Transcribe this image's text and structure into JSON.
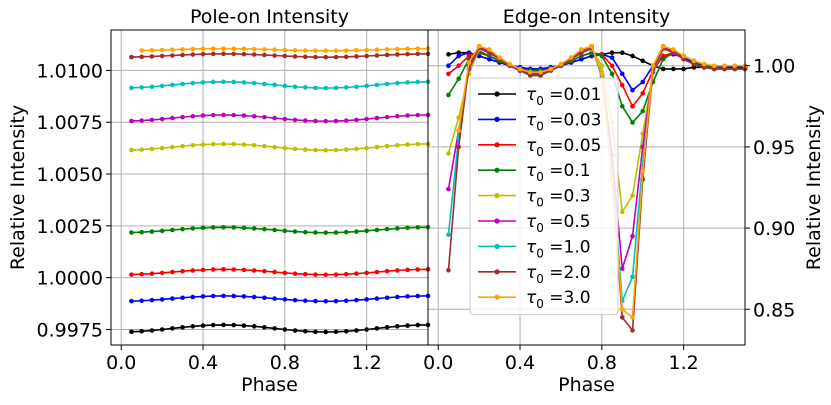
{
  "chart_data": [
    {
      "type": "line",
      "title": "Pole-on Intensity",
      "xlabel": "Phase",
      "ylabel": "Relative Intensity",
      "xlim": [
        -0.05,
        1.5
      ],
      "ylim": [
        0.99675,
        1.01195
      ],
      "xticks": [
        0.0,
        0.4,
        0.8,
        1.2
      ],
      "xtick_labels": [
        "0.0",
        "0.4",
        "0.8",
        "1.2"
      ],
      "yticks": [
        0.9975,
        1.0,
        1.0025,
        1.005,
        1.0075,
        1.01
      ],
      "ytick_labels": [
        "0.9975",
        "1.0000",
        "1.0025",
        "1.0050",
        "1.0075",
        "1.0100"
      ],
      "grid": true,
      "x": [
        0.05,
        0.1,
        0.15,
        0.2,
        0.25,
        0.3,
        0.35,
        0.4,
        0.45,
        0.5,
        0.55,
        0.6,
        0.65,
        0.7,
        0.75,
        0.8,
        0.85,
        0.9,
        0.95,
        1.0,
        1.05,
        1.1,
        1.15,
        1.2,
        1.25,
        1.3,
        1.35,
        1.4,
        1.45,
        1.5
      ],
      "series": [
        {
          "name": "τ0 =0.01",
          "color": "#000000",
          "base": 0.99755,
          "amp": 0.00017
        },
        {
          "name": "τ0 =0.03",
          "color": "#0000ff",
          "base": 0.99899,
          "amp": 0.00013
        },
        {
          "name": "τ0 =0.05",
          "color": "#ff0000",
          "base": 1.00027,
          "amp": 0.00013
        },
        {
          "name": "τ0 =0.1",
          "color": "#008000",
          "base": 1.0023,
          "amp": 0.00013
        },
        {
          "name": "τ0 =0.3",
          "color": "#bfbf00",
          "base": 1.0063,
          "amp": 0.00015
        },
        {
          "name": "τ0 =0.5",
          "color": "#bf00bf",
          "base": 1.0077,
          "amp": 0.00015
        },
        {
          "name": "τ0 =1.0",
          "color": "#00bfbf",
          "base": 1.0093,
          "amp": 0.00015
        },
        {
          "name": "τ0 =2.0",
          "color": "#a52a2a",
          "base": 1.01072,
          "amp": 8e-05
        },
        {
          "name": "τ0 =3.0",
          "color": "#ffa500",
          "base": 1.011,
          "amp": 5e-05,
          "x_start": 0.1
        }
      ]
    },
    {
      "type": "line",
      "title": "Edge-on Intensity",
      "xlabel": "Phase",
      "ylabel": "Relative Intensity",
      "xlim": [
        -0.05,
        1.5
      ],
      "ylim": [
        0.828,
        1.022
      ],
      "xticks": [
        0.0,
        0.4,
        0.8,
        1.2
      ],
      "xtick_labels": [
        "0.0",
        "0.4",
        "0.8",
        "1.2"
      ],
      "yticks": [
        0.85,
        0.9,
        0.95,
        1.0
      ],
      "ytick_labels": [
        "0.85",
        "0.90",
        "0.95",
        "1.00"
      ],
      "yaxis_side": "right",
      "grid": true,
      "x": [
        0.05,
        0.1,
        0.15,
        0.2,
        0.25,
        0.3,
        0.35,
        0.4,
        0.45,
        0.5,
        0.55,
        0.6,
        0.65,
        0.7,
        0.75,
        0.8,
        0.85,
        0.9,
        0.95,
        1.0,
        1.05,
        1.1,
        1.15,
        1.2,
        1.25,
        1.3,
        1.35,
        1.4,
        1.45,
        1.5
      ],
      "series": [
        {
          "name": "τ0 =0.01",
          "color": "#000000",
          "values": [
            1.007,
            1.008,
            1.008,
            1.006,
            1.004,
            1.002,
            1.0,
            0.999,
            0.998,
            0.998,
            0.999,
            1.0,
            1.002,
            1.004,
            1.006,
            1.007,
            1.008,
            1.008,
            1.006,
            1.003,
            1.0,
            0.998,
            0.998,
            0.998,
            0.999,
            0.999,
            0.999,
            0.999,
            0.999,
            0.999
          ]
        },
        {
          "name": "τ0 =0.03",
          "color": "#0000ff",
          "values": [
            1.0,
            1.006,
            1.008,
            1.006,
            1.004,
            1.002,
            1.0,
            0.999,
            0.998,
            0.998,
            0.999,
            1.0,
            1.002,
            1.004,
            1.006,
            1.007,
            1.005,
            0.995,
            0.985,
            0.99,
            1.0,
            1.006,
            1.007,
            1.005,
            1.002,
            1.0,
            0.999,
            0.999,
            0.999,
            0.999
          ]
        },
        {
          "name": "τ0 =0.05",
          "color": "#ff0000",
          "values": [
            0.995,
            1.0,
            1.006,
            1.009,
            1.006,
            1.003,
            1.0,
            0.998,
            0.997,
            0.997,
            0.998,
            1.0,
            1.003,
            1.006,
            1.008,
            1.007,
            1.0,
            0.988,
            0.975,
            0.983,
            0.997,
            1.006,
            1.008,
            1.006,
            1.003,
            1.0,
            0.999,
            0.998,
            0.998,
            0.998
          ]
        },
        {
          "name": "τ0 =0.1",
          "color": "#008000",
          "values": [
            0.982,
            0.992,
            1.004,
            1.008,
            1.006,
            1.003,
            1.0,
            0.998,
            0.997,
            0.997,
            0.998,
            1.0,
            1.003,
            1.006,
            1.008,
            1.006,
            0.995,
            0.975,
            0.965,
            0.972,
            0.99,
            1.004,
            1.008,
            1.006,
            1.003,
            1.0,
            0.999,
            0.998,
            0.998,
            0.998
          ]
        },
        {
          "name": "τ0 =0.3",
          "color": "#bfbf00",
          "values": [
            0.946,
            0.968,
            0.995,
            1.01,
            1.008,
            1.004,
            1.0,
            0.997,
            0.995,
            0.995,
            0.997,
            1.0,
            1.004,
            1.008,
            1.01,
            1.0,
            0.965,
            0.91,
            0.92,
            0.958,
            0.996,
            1.01,
            1.008,
            1.004,
            1.001,
            0.999,
            0.998,
            0.998,
            0.998,
            0.998
          ]
        },
        {
          "name": "τ0 =0.5",
          "color": "#bf00bf",
          "values": [
            0.924,
            0.96,
            0.998,
            1.011,
            1.008,
            1.004,
            1.0,
            0.997,
            0.995,
            0.995,
            0.997,
            1.0,
            1.004,
            1.008,
            1.011,
            0.995,
            0.945,
            0.875,
            0.895,
            0.95,
            0.996,
            1.011,
            1.008,
            1.004,
            1.001,
            0.999,
            0.998,
            0.998,
            0.998,
            0.998
          ]
        },
        {
          "name": "τ0 =1.0",
          "color": "#00bfbf",
          "values": [
            0.896,
            0.956,
            1.0,
            1.012,
            1.009,
            1.004,
            1.0,
            0.997,
            0.994,
            0.994,
            0.997,
            1.0,
            1.004,
            1.009,
            1.012,
            0.993,
            0.935,
            0.855,
            0.87,
            0.94,
            0.997,
            1.012,
            1.009,
            1.004,
            1.001,
            0.999,
            0.998,
            0.998,
            0.998,
            0.998
          ]
        },
        {
          "name": "τ0 =2.0",
          "color": "#a52a2a",
          "values": [
            0.874,
            0.95,
            1.0,
            1.012,
            1.009,
            1.004,
            1.0,
            0.997,
            0.994,
            0.994,
            0.997,
            1.0,
            1.004,
            1.009,
            1.012,
            0.995,
            0.93,
            0.845,
            0.837,
            0.93,
            0.998,
            1.012,
            1.009,
            1.004,
            1.001,
            0.999,
            0.998,
            0.998,
            0.998,
            0.998
          ]
        },
        {
          "name": "τ0 =3.0",
          "color": "#ffa500",
          "values": [
            null,
            0.96,
            1.002,
            1.012,
            1.01,
            1.005,
            1.001,
            0.998,
            0.996,
            0.996,
            0.998,
            1.001,
            1.005,
            1.01,
            1.012,
            0.995,
            0.93,
            0.85,
            0.845,
            0.935,
            1.0,
            1.012,
            1.01,
            1.006,
            1.003,
            1.001,
            1.0,
            1.0,
            1.0,
            1.0
          ]
        }
      ]
    }
  ],
  "legend": {
    "placement": "center-right of edge-on panel",
    "entries": [
      {
        "symbol": "τ",
        "sub": "0",
        "suffix": " =0.01"
      },
      {
        "symbol": "τ",
        "sub": "0",
        "suffix": " =0.03"
      },
      {
        "symbol": "τ",
        "sub": "0",
        "suffix": " =0.05"
      },
      {
        "symbol": "τ",
        "sub": "0",
        "suffix": " =0.1"
      },
      {
        "symbol": "τ",
        "sub": "0",
        "suffix": " =0.3"
      },
      {
        "symbol": "τ",
        "sub": "0",
        "suffix": " =0.5"
      },
      {
        "symbol": "τ",
        "sub": "0",
        "suffix": " =1.0"
      },
      {
        "symbol": "τ",
        "sub": "0",
        "suffix": " =2.0"
      },
      {
        "symbol": "τ",
        "sub": "0",
        "suffix": " =3.0"
      }
    ]
  }
}
